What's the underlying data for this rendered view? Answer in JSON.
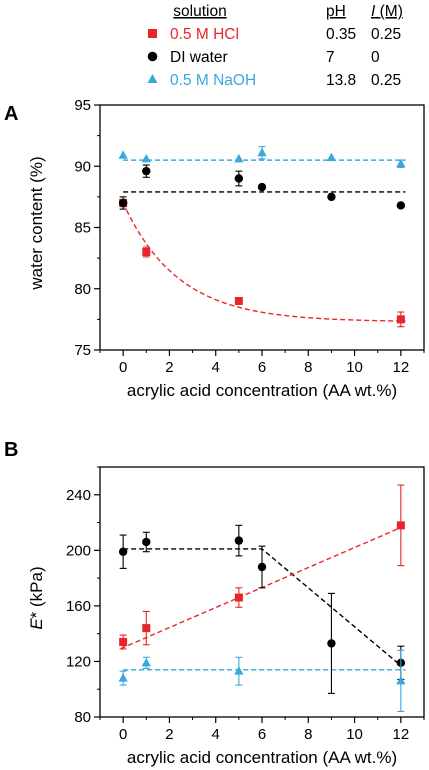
{
  "legend": {
    "headers": {
      "solution": "solution",
      "ph": "pH",
      "ionic_italic": "I",
      "ionic_unit": " (M)"
    },
    "rows": [
      {
        "label": "0.5 M HCl",
        "ph": "0.35",
        "ionic": "0.25",
        "color": "#e8262a",
        "marker": "square"
      },
      {
        "label": "DI water",
        "ph": "7",
        "ionic": "0",
        "color": "#000000",
        "marker": "circle"
      },
      {
        "label": "0.5 M NaOH",
        "ph": "13.8",
        "ionic": "0.25",
        "color": "#3aa8dd",
        "marker": "triangle"
      }
    ]
  },
  "chart_data": [
    {
      "panel": "A",
      "type": "scatter",
      "xlabel": "acrylic acid concentration (AA wt.%)",
      "ylabel": "water content (%)",
      "xlim": [
        -1,
        13
      ],
      "ylim": [
        75,
        95
      ],
      "xticks": [
        0,
        2,
        4,
        6,
        8,
        10,
        12
      ],
      "yticks": [
        75,
        80,
        85,
        90,
        95
      ],
      "series": [
        {
          "name": "0.5 M HCl",
          "color": "#e8262a",
          "marker": "square",
          "x": [
            0,
            1,
            5,
            12
          ],
          "y": [
            87.0,
            83.0,
            79.0,
            77.5
          ],
          "err": [
            0.3,
            0.4,
            0.2,
            0.6
          ]
        },
        {
          "name": "DI water",
          "color": "#000000",
          "marker": "circle",
          "x": [
            0,
            1,
            5,
            6,
            9,
            12
          ],
          "y": [
            87.0,
            89.6,
            89.0,
            88.3,
            87.5,
            86.8
          ],
          "err": [
            0.5,
            0.5,
            0.6,
            0,
            0,
            0
          ]
        },
        {
          "name": "0.5 M NaOH",
          "color": "#3aa8dd",
          "marker": "triangle",
          "x": [
            0,
            1,
            5,
            6,
            9,
            12
          ],
          "y": [
            90.9,
            90.6,
            90.6,
            91.1,
            90.7,
            90.2
          ],
          "err": [
            0,
            0,
            0,
            0.5,
            0,
            0.3
          ]
        }
      ],
      "fits": [
        {
          "color": "#000000",
          "kind": "constant",
          "y": 87.9,
          "x_range": [
            0,
            12.2
          ]
        },
        {
          "color": "#3aa8dd",
          "kind": "constant",
          "y": 90.5,
          "x_range": [
            0,
            12.2
          ]
        },
        {
          "color": "#e8262a",
          "kind": "exponential_decay",
          "a": 77.3,
          "b": 9.7,
          "k": 0.42,
          "x_range": [
            0,
            12.2
          ]
        }
      ]
    },
    {
      "panel": "B",
      "type": "scatter",
      "xlabel": "acrylic acid concentration (AA wt.%)",
      "ylabel_italic": "E",
      "ylabel_rest": "* (kPa)",
      "xlim": [
        -1,
        13
      ],
      "ylim": [
        80,
        260
      ],
      "xticks": [
        0,
        2,
        4,
        6,
        8,
        10,
        12
      ],
      "yticks": [
        80,
        120,
        160,
        200,
        240
      ],
      "series": [
        {
          "name": "0.5 M HCl",
          "color": "#e8262a",
          "marker": "square",
          "x": [
            0,
            1,
            5,
            12
          ],
          "y": [
            134,
            144,
            166,
            218
          ],
          "err": [
            5,
            12,
            7,
            29
          ]
        },
        {
          "name": "DI water",
          "color": "#000000",
          "marker": "circle",
          "x": [
            0,
            1,
            5,
            6,
            9,
            12
          ],
          "y": [
            199,
            206,
            207,
            188,
            133,
            119
          ],
          "err": [
            12,
            7,
            11,
            15,
            36,
            12
          ]
        },
        {
          "name": "0.5 M NaOH",
          "color": "#3aa8dd",
          "marker": "triangle",
          "x": [
            0,
            1,
            5,
            12
          ],
          "y": [
            108,
            119,
            113,
            106
          ],
          "err": [
            5,
            4,
            10,
            22
          ]
        }
      ],
      "fits": [
        {
          "color": "#000000",
          "kind": "piecewise",
          "points": [
            [
              0,
              201
            ],
            [
              6,
              201
            ],
            [
              12,
              117
            ]
          ]
        },
        {
          "color": "#3aa8dd",
          "kind": "constant",
          "y": 114,
          "x_range": [
            0,
            12.2
          ]
        },
        {
          "color": "#e8262a",
          "kind": "linear",
          "slope": 7.2,
          "intercept": 130,
          "x_range": [
            -0.1,
            12.2
          ]
        }
      ]
    }
  ]
}
